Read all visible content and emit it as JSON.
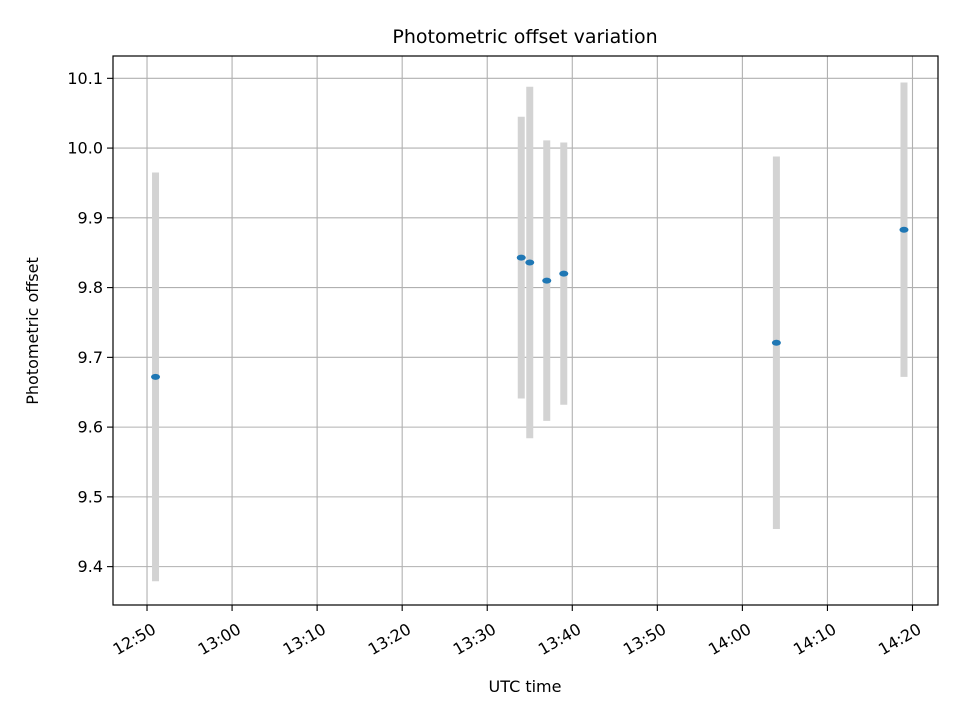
{
  "chart_data": {
    "type": "scatter",
    "title": "Photometric offset variation",
    "xlabel": "UTC time",
    "ylabel": "Photometric offset",
    "x_unit": "time (HH:MM UTC)",
    "xlim": [
      "12:46",
      "14:23"
    ],
    "ylim": [
      9.345,
      10.132
    ],
    "x_ticks": [
      "12:50",
      "13:00",
      "13:10",
      "13:20",
      "13:30",
      "13:40",
      "13:50",
      "14:00",
      "14:10",
      "14:20"
    ],
    "y_ticks": [
      9.4,
      9.5,
      9.6,
      9.7,
      9.8,
      9.9,
      10.0,
      10.1
    ],
    "y_tick_labels": [
      "9.4",
      "9.5",
      "9.6",
      "9.7",
      "9.8",
      "9.9",
      "10.0",
      "10.1"
    ],
    "grid": true,
    "points": [
      {
        "x": "12:51",
        "y": 9.672,
        "yerr": 0.293
      },
      {
        "x": "13:34",
        "y": 9.843,
        "yerr": 0.202
      },
      {
        "x": "13:35",
        "y": 9.836,
        "yerr": 0.252
      },
      {
        "x": "13:37",
        "y": 9.81,
        "yerr": 0.201
      },
      {
        "x": "13:39",
        "y": 9.82,
        "yerr": 0.188
      },
      {
        "x": "14:04",
        "y": 9.721,
        "yerr": 0.267
      },
      {
        "x": "14:19",
        "y": 9.883,
        "yerr": 0.211
      }
    ],
    "colors": {
      "point": "#1f77b4",
      "errorbar": "#d3d3d3",
      "grid": "#b0b0b0",
      "axes": "#000000"
    }
  }
}
